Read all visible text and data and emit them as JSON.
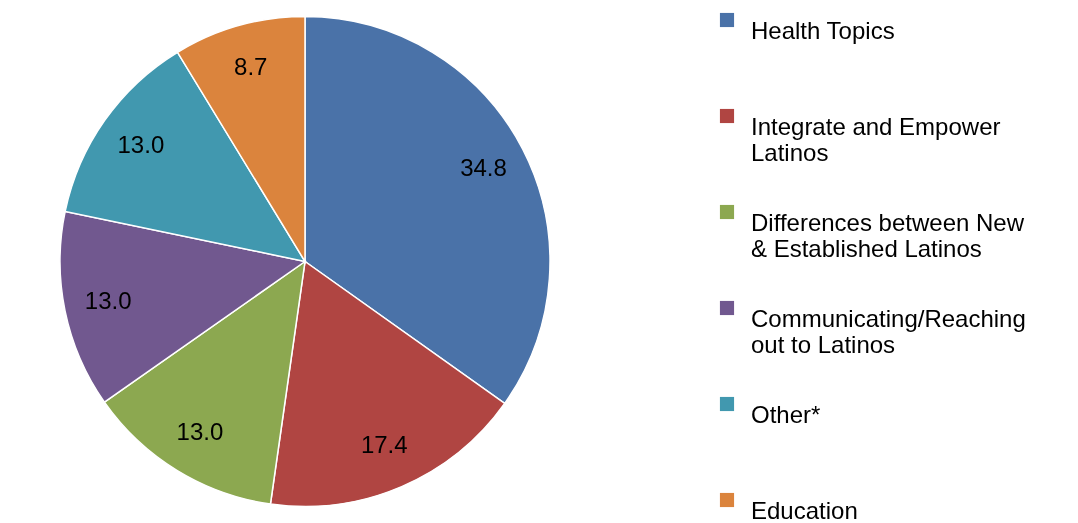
{
  "chart_data": {
    "type": "pie",
    "categories": [
      "Health Topics",
      "Integrate and Empower Latinos",
      "Differences between New & Established Latinos",
      "Communicating/Reaching out to Latinos",
      "Other*",
      "Education"
    ],
    "values": [
      34.8,
      17.4,
      13.0,
      13.0,
      13.0,
      8.7
    ],
    "value_labels": [
      "34.8",
      "17.4",
      "13.0",
      "13.0",
      "13.0",
      "8.7"
    ],
    "colors": [
      "#4a72a8",
      "#b04542",
      "#8ca850",
      "#71588f",
      "#4198af",
      "#db843d"
    ],
    "legend": "right"
  }
}
